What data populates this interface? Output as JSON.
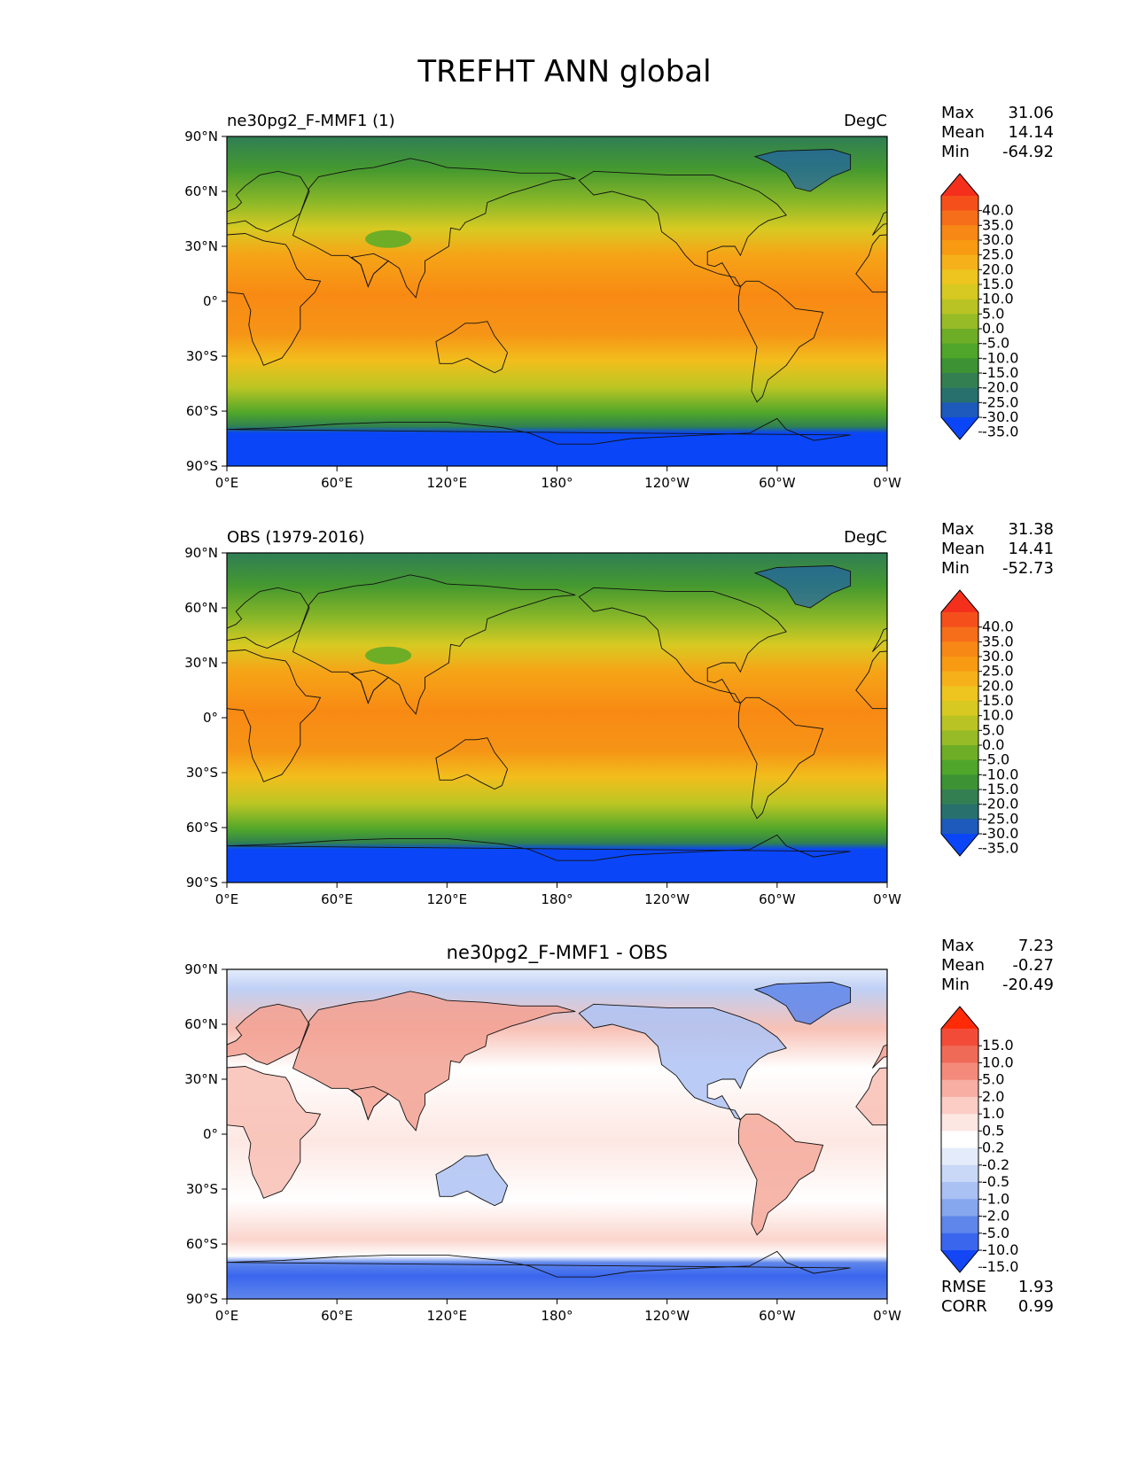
{
  "figure": {
    "title": "TREFHT ANN global"
  },
  "axes": {
    "lat_ticks": [
      "90°N",
      "60°N",
      "30°N",
      "0°",
      "30°S",
      "60°S",
      "90°S"
    ],
    "lon_ticks": [
      "0°E",
      "60°E",
      "120°E",
      "180°",
      "120°W",
      "60°W",
      "0°W"
    ]
  },
  "panels": [
    {
      "id": "model",
      "title_left": "ne30pg2_F-MMF1 (1)",
      "title_center": "",
      "units": "DegC",
      "stats": [
        {
          "label": "Max",
          "value": "31.06"
        },
        {
          "label": "Mean",
          "value": "14.14"
        },
        {
          "label": "Min",
          "value": "-64.92"
        }
      ],
      "colorbar": {
        "ticks": [
          "40.0",
          "35.0",
          "30.0",
          "25.0",
          "20.0",
          "15.0",
          "10.0",
          "5.0",
          "0.0",
          "-5.0",
          "-10.0",
          "-15.0",
          "-20.0",
          "-25.0",
          "-30.0",
          "-35.0"
        ],
        "colors": [
          "#f42f1c",
          "#f5501b",
          "#f66e1a",
          "#f88816",
          "#f89a12",
          "#f6b11a",
          "#edc51e",
          "#d7c921",
          "#bac324",
          "#96bb26",
          "#6ead26",
          "#4fa62a",
          "#3d9234",
          "#347f52",
          "#28706e",
          "#1d5abb",
          "#0a46f7"
        ]
      }
    },
    {
      "id": "obs",
      "title_left": "OBS (1979-2016)",
      "title_center": "",
      "units": "DegC",
      "stats": [
        {
          "label": "Max",
          "value": "31.38"
        },
        {
          "label": "Mean",
          "value": "14.41"
        },
        {
          "label": "Min",
          "value": "-52.73"
        }
      ],
      "colorbar": {
        "ticks": [
          "40.0",
          "35.0",
          "30.0",
          "25.0",
          "20.0",
          "15.0",
          "10.0",
          "5.0",
          "0.0",
          "-5.0",
          "-10.0",
          "-15.0",
          "-20.0",
          "-25.0",
          "-30.0",
          "-35.0"
        ],
        "colors": [
          "#f42f1c",
          "#f5501b",
          "#f66e1a",
          "#f88816",
          "#f89a12",
          "#f6b11a",
          "#edc51e",
          "#d7c921",
          "#bac324",
          "#96bb26",
          "#6ead26",
          "#4fa62a",
          "#3d9234",
          "#347f52",
          "#28706e",
          "#1d5abb",
          "#0a46f7"
        ]
      }
    },
    {
      "id": "diff",
      "title_left": "",
      "title_center": "ne30pg2_F-MMF1 - OBS",
      "units": "",
      "stats": [
        {
          "label": "Max",
          "value": "7.23"
        },
        {
          "label": "Mean",
          "value": "-0.27"
        },
        {
          "label": "Min",
          "value": "-20.49"
        }
      ],
      "extra_stats": [
        {
          "label": "RMSE",
          "value": "1.93"
        },
        {
          "label": "CORR",
          "value": "0.99"
        }
      ],
      "colorbar": {
        "ticks": [
          "15.0",
          "10.0",
          "5.0",
          "2.0",
          "1.0",
          "0.5",
          "0.2",
          "-0.2",
          "-0.5",
          "-1.0",
          "-2.0",
          "-5.0",
          "-10.0",
          "-15.0"
        ],
        "colors": [
          "#ff2a08",
          "#f24c38",
          "#f06a58",
          "#f48a7a",
          "#f8aea2",
          "#fbcdc4",
          "#fde7e2",
          "#ffffff",
          "#e4ecfb",
          "#c9d8f7",
          "#a9c1f3",
          "#86a6ee",
          "#5f86ea",
          "#3a66ee",
          "#1346f5"
        ]
      }
    }
  ]
}
